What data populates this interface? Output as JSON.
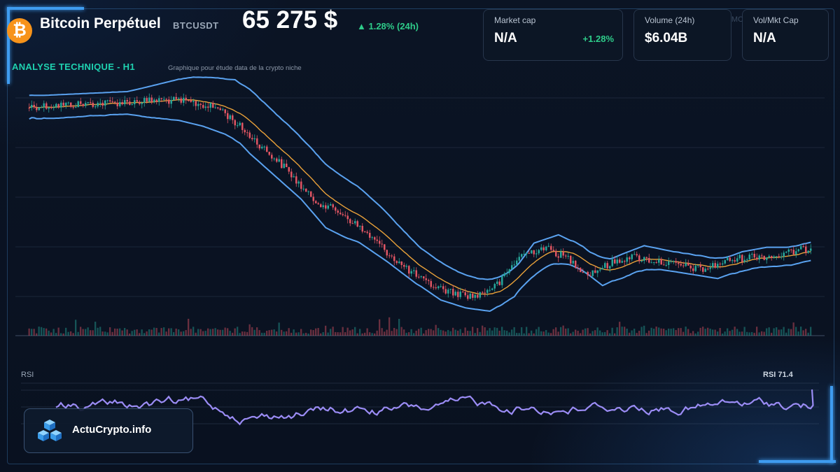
{
  "header": {
    "coin_symbol_glyph": "₿",
    "title": "Bitcoin Perpétuel",
    "symbol": "BTCUSDT",
    "price": "65 275 $",
    "change": "▲ 1.28% (24h)"
  },
  "cards": [
    {
      "label": "Market cap",
      "value": "N/A",
      "delta": "+1.28%"
    },
    {
      "label": "Volume (24h)",
      "value": "$6.04B",
      "ghost": "MC"
    },
    {
      "label": "Vol/Mkt Cap",
      "value": "N/A"
    }
  ],
  "section": {
    "title": "ANALYSE TECHNIQUE - H1",
    "subtitle": "Graphique pour étude data de la crypto niche"
  },
  "rsi": {
    "label": "RSI",
    "value_label": "RSI 71.4"
  },
  "brand": {
    "name": "ActuCrypto.info",
    "icon": "cubes-logo-icon"
  },
  "colors": {
    "accent_teal": "#1fd1b0",
    "up": "#2ecc8a",
    "bull_candle": "#26a69a",
    "bear_candle": "#e05563",
    "bollinger": "#5aa2f0",
    "ma": "#e9a13a",
    "rsi_line": "#9b8cf5",
    "frame_glow": "#3f9cf0",
    "bitcoin_orange": "#f7931a"
  },
  "chart_data": {
    "type": "candlestick",
    "timeframe": "H1",
    "indicators": [
      "bollinger_bands",
      "moving_average",
      "volume",
      "rsi"
    ],
    "grid": true,
    "close_path": [
      [
        0,
        0.07
      ],
      [
        20,
        0.06
      ],
      [
        40,
        0.05
      ],
      [
        55,
        0.04
      ],
      [
        65,
        0.05
      ],
      [
        78,
        0.08
      ],
      [
        90,
        0.2
      ],
      [
        105,
        0.35
      ],
      [
        115,
        0.48
      ],
      [
        122,
        0.52
      ],
      [
        128,
        0.55
      ],
      [
        140,
        0.66
      ],
      [
        152,
        0.78
      ],
      [
        162,
        0.86
      ],
      [
        172,
        0.9
      ],
      [
        182,
        0.92
      ],
      [
        192,
        0.86
      ],
      [
        200,
        0.74
      ],
      [
        210,
        0.7
      ],
      [
        220,
        0.75
      ],
      [
        228,
        0.82
      ],
      [
        236,
        0.78
      ],
      [
        245,
        0.74
      ],
      [
        255,
        0.76
      ],
      [
        265,
        0.78
      ],
      [
        275,
        0.8
      ],
      [
        285,
        0.76
      ],
      [
        295,
        0.74
      ],
      [
        305,
        0.74
      ],
      [
        312,
        0.72
      ],
      [
        320,
        0.7
      ]
    ],
    "band_width": [
      [
        0,
        0.05
      ],
      [
        40,
        0.05
      ],
      [
        60,
        0.09
      ],
      [
        90,
        0.14
      ],
      [
        130,
        0.13
      ],
      [
        160,
        0.08
      ],
      [
        200,
        0.06
      ],
      [
        240,
        0.05
      ],
      [
        280,
        0.04
      ],
      [
        320,
        0.04
      ]
    ],
    "rsi_current": 71.4
  }
}
